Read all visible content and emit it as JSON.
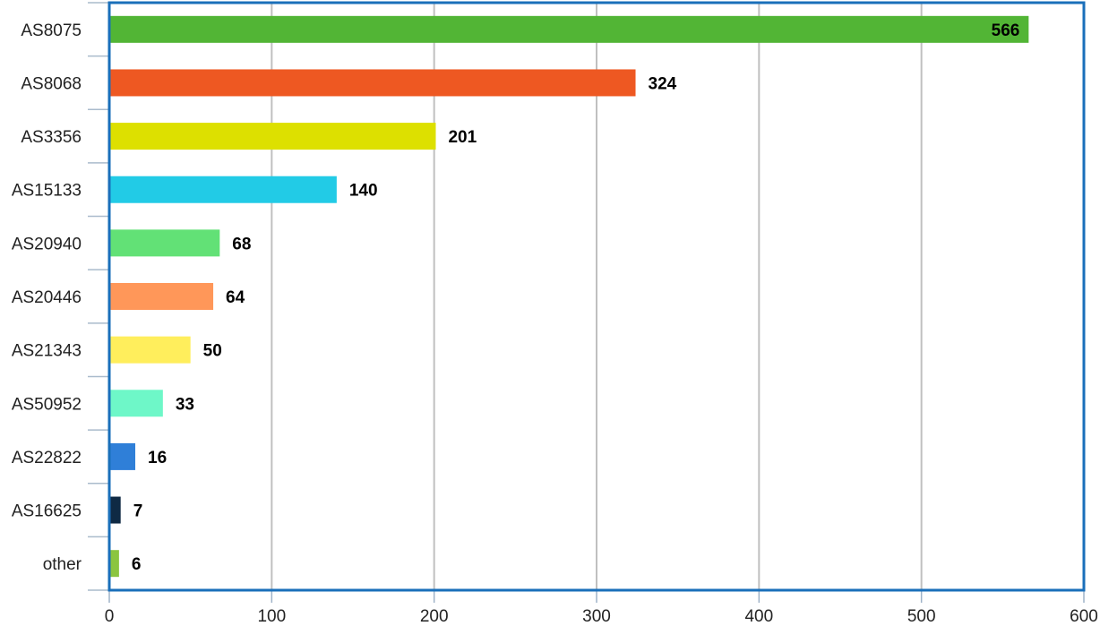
{
  "chart_data": {
    "type": "bar",
    "orientation": "horizontal",
    "title": "",
    "xlabel": "",
    "ylabel": "",
    "categories": [
      "AS8075",
      "AS8068",
      "AS3356",
      "AS15133",
      "AS20940",
      "AS20446",
      "AS21343",
      "AS50952",
      "AS22822",
      "AS16625",
      "other"
    ],
    "values": [
      566,
      324,
      201,
      140,
      68,
      64,
      50,
      33,
      16,
      7,
      6
    ],
    "colors": [
      "#52b535",
      "#ee5822",
      "#dde000",
      "#22cbe6",
      "#62e176",
      "#ff9759",
      "#ffee5c",
      "#6ef7c8",
      "#2f7fd8",
      "#0f2a44",
      "#8bc53f"
    ],
    "xlim": [
      0,
      600
    ],
    "xticks": [
      0,
      100,
      200,
      300,
      400,
      500,
      600
    ],
    "grid": true,
    "legend": "none",
    "frame_color": "#1a6fba",
    "grid_color": "#c0c0c0"
  }
}
